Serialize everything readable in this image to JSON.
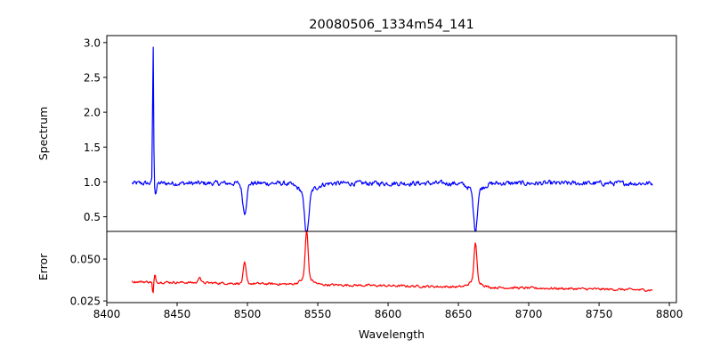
{
  "chart_data": {
    "type": "line",
    "title": "20080506_1334m54_141",
    "xlabel": "Wavelength",
    "xlim": [
      8400,
      8805
    ],
    "xticks": [
      8400,
      8450,
      8500,
      8550,
      8600,
      8650,
      8700,
      8750,
      8800
    ],
    "panels": [
      {
        "name": "spectrum",
        "ylabel": "Spectrum",
        "ylim": [
          0.29,
          3.1
        ],
        "yticks": [
          0.5,
          1.0,
          1.5,
          2.0,
          2.5,
          3.0
        ],
        "ytick_labels": [
          "0.5",
          "1.0",
          "1.5",
          "2.0",
          "2.5",
          "3.0"
        ],
        "color": "#0000ff",
        "x_range": [
          8418,
          8788
        ],
        "baseline": 0.98,
        "noise": 0.055,
        "features": [
          {
            "center": 8432.9,
            "amplitude": 2.0,
            "width": 0.35
          },
          {
            "center": 8433.6,
            "amplitude": 0.1,
            "width": 0.4
          },
          {
            "center": 8434.6,
            "amplitude": -0.14,
            "width": 0.8
          },
          {
            "center": 8498.0,
            "amplitude": -0.42,
            "width": 1.4
          },
          {
            "center": 8542.1,
            "amplitude": -0.62,
            "width": 1.5
          },
          {
            "center": 8542.1,
            "amplitude": -0.12,
            "width": 6.0
          },
          {
            "center": 8662.1,
            "amplitude": -0.58,
            "width": 1.3
          },
          {
            "center": 8662.1,
            "amplitude": -0.1,
            "width": 5.0
          }
        ]
      },
      {
        "name": "error",
        "ylabel": "Error",
        "ylim": [
          0.024,
          0.0665
        ],
        "yticks": [
          0.025,
          0.05
        ],
        "ytick_labels": [
          "0.025",
          "0.050"
        ],
        "color": "#ff0000",
        "x_range": [
          8418,
          8788
        ],
        "baseline": 0.0365,
        "baseline_end": 0.0315,
        "noise": 0.0011,
        "features": [
          {
            "center": 8432.8,
            "amplitude": -0.008,
            "width": 0.35
          },
          {
            "center": 8434.3,
            "amplitude": 0.004,
            "width": 0.5
          },
          {
            "center": 8498.0,
            "amplitude": 0.012,
            "width": 1.0
          },
          {
            "center": 8542.1,
            "amplitude": 0.028,
            "width": 1.0
          },
          {
            "center": 8542.1,
            "amplitude": 0.004,
            "width": 4.0
          },
          {
            "center": 8662.1,
            "amplitude": 0.022,
            "width": 1.0
          },
          {
            "center": 8662.1,
            "amplitude": 0.004,
            "width": 4.0
          },
          {
            "center": 8466.0,
            "amplitude": 0.004,
            "width": 0.8
          }
        ]
      }
    ]
  }
}
